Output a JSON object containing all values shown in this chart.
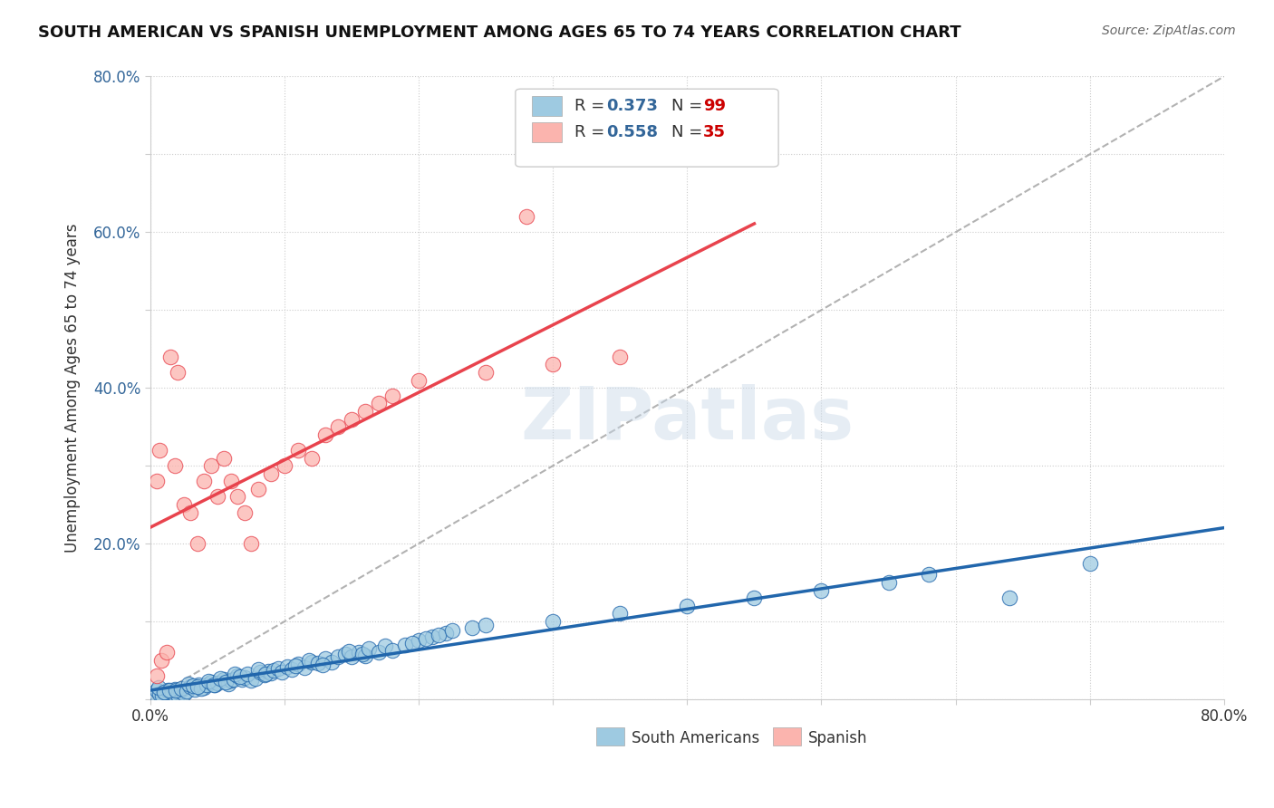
{
  "title": "SOUTH AMERICAN VS SPANISH UNEMPLOYMENT AMONG AGES 65 TO 74 YEARS CORRELATION CHART",
  "source": "Source: ZipAtlas.com",
  "xlabel": "",
  "ylabel": "Unemployment Among Ages 65 to 74 years",
  "xlim": [
    0.0,
    0.8
  ],
  "ylim": [
    0.0,
    0.8
  ],
  "xticks": [
    0.0,
    0.1,
    0.2,
    0.3,
    0.4,
    0.5,
    0.6,
    0.7,
    0.8
  ],
  "xticklabels": [
    "0.0%",
    "",
    "",
    "",
    "",
    "",
    "",
    "",
    "80.0%"
  ],
  "yticks": [
    0.0,
    0.1,
    0.2,
    0.3,
    0.4,
    0.5,
    0.6,
    0.7,
    0.8
  ],
  "yticklabels": [
    "",
    "",
    "20.0%",
    "",
    "40.0%",
    "",
    "60.0%",
    "",
    "80.0%"
  ],
  "legend_r1": "0.373",
  "legend_n1": "99",
  "legend_r2": "0.558",
  "legend_n2": "35",
  "color_blue": "#9ecae1",
  "color_pink": "#fbb4ae",
  "color_blue_line": "#2166ac",
  "color_pink_line": "#e8434d",
  "color_dashed": "#aaaaaa",
  "background_color": "#ffffff",
  "watermark": "ZIPatlas",
  "sa_x": [
    0.005,
    0.008,
    0.01,
    0.012,
    0.015,
    0.005,
    0.007,
    0.009,
    0.011,
    0.013,
    0.016,
    0.018,
    0.02,
    0.022,
    0.025,
    0.006,
    0.01,
    0.014,
    0.019,
    0.023,
    0.027,
    0.03,
    0.033,
    0.036,
    0.04,
    0.028,
    0.032,
    0.038,
    0.042,
    0.045,
    0.048,
    0.05,
    0.055,
    0.058,
    0.06,
    0.035,
    0.043,
    0.047,
    0.052,
    0.056,
    0.062,
    0.065,
    0.068,
    0.07,
    0.075,
    0.063,
    0.067,
    0.072,
    0.078,
    0.082,
    0.085,
    0.088,
    0.09,
    0.08,
    0.086,
    0.092,
    0.095,
    0.098,
    0.102,
    0.105,
    0.11,
    0.115,
    0.12,
    0.108,
    0.118,
    0.125,
    0.13,
    0.135,
    0.14,
    0.128,
    0.145,
    0.15,
    0.155,
    0.16,
    0.148,
    0.158,
    0.163,
    0.17,
    0.175,
    0.18,
    0.19,
    0.2,
    0.21,
    0.22,
    0.195,
    0.205,
    0.215,
    0.225,
    0.24,
    0.25,
    0.3,
    0.35,
    0.4,
    0.45,
    0.5,
    0.55,
    0.58,
    0.64,
    0.7
  ],
  "sa_y": [
    0.005,
    0.008,
    0.003,
    0.01,
    0.006,
    0.012,
    0.007,
    0.004,
    0.009,
    0.011,
    0.008,
    0.013,
    0.006,
    0.01,
    0.007,
    0.015,
    0.009,
    0.012,
    0.011,
    0.014,
    0.01,
    0.016,
    0.013,
    0.018,
    0.015,
    0.02,
    0.017,
    0.014,
    0.019,
    0.022,
    0.018,
    0.021,
    0.025,
    0.02,
    0.024,
    0.016,
    0.023,
    0.019,
    0.027,
    0.022,
    0.026,
    0.03,
    0.025,
    0.028,
    0.024,
    0.032,
    0.029,
    0.033,
    0.027,
    0.035,
    0.031,
    0.036,
    0.034,
    0.038,
    0.032,
    0.037,
    0.04,
    0.035,
    0.042,
    0.038,
    0.045,
    0.041,
    0.048,
    0.043,
    0.05,
    0.046,
    0.052,
    0.048,
    0.055,
    0.044,
    0.058,
    0.054,
    0.06,
    0.056,
    0.062,
    0.058,
    0.065,
    0.06,
    0.068,
    0.063,
    0.07,
    0.075,
    0.08,
    0.085,
    0.072,
    0.078,
    0.082,
    0.088,
    0.092,
    0.095,
    0.1,
    0.11,
    0.12,
    0.13,
    0.14,
    0.15,
    0.16,
    0.13,
    0.175
  ],
  "sp_x": [
    0.005,
    0.008,
    0.01,
    0.012,
    0.005,
    0.007,
    0.015,
    0.02,
    0.018,
    0.025,
    0.03,
    0.035,
    0.04,
    0.045,
    0.05,
    0.055,
    0.06,
    0.065,
    0.07,
    0.075,
    0.08,
    0.09,
    0.1,
    0.11,
    0.12,
    0.13,
    0.14,
    0.15,
    0.16,
    0.17,
    0.18,
    0.2,
    0.25,
    0.3,
    0.35
  ],
  "sp_y": [
    0.03,
    0.05,
    0.02,
    0.06,
    0.28,
    0.32,
    0.44,
    0.42,
    0.3,
    0.25,
    0.24,
    0.2,
    0.28,
    0.3,
    0.26,
    0.31,
    0.28,
    0.26,
    0.24,
    0.2,
    0.27,
    0.29,
    0.3,
    0.32,
    0.31,
    0.34,
    0.35,
    0.36,
    0.37,
    0.38,
    0.39,
    0.41,
    0.42,
    0.43,
    0.44
  ]
}
